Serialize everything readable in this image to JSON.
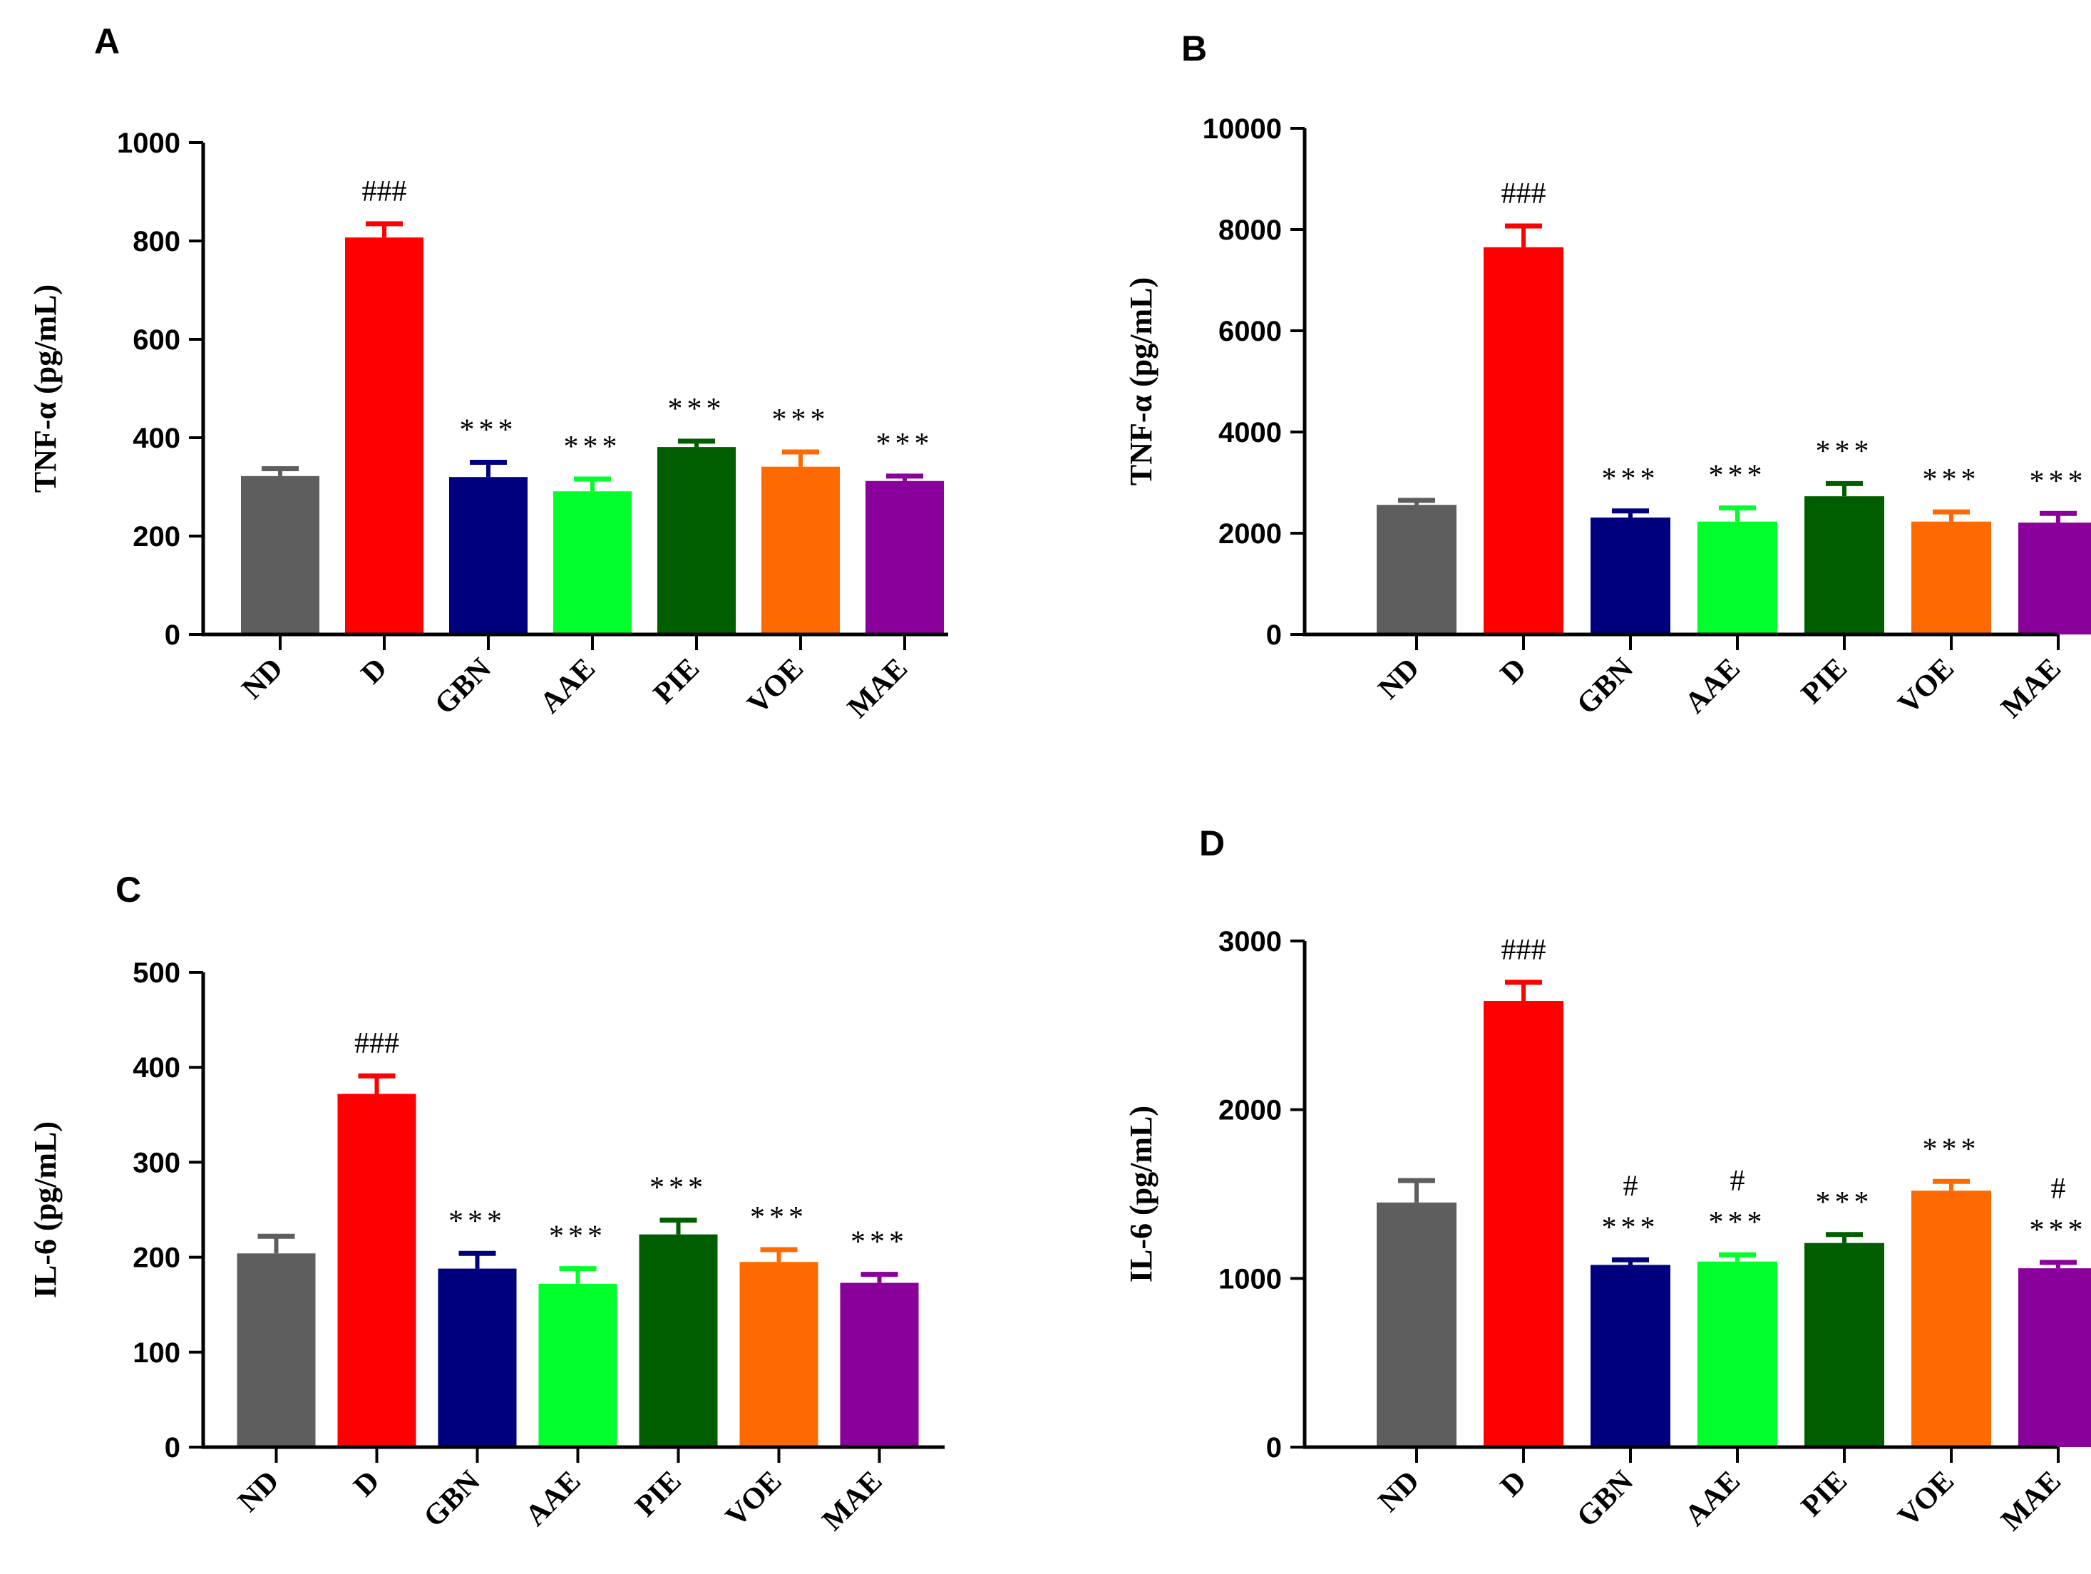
{
  "chart_data": [
    {
      "panel": "A",
      "type": "bar",
      "ylabel": "TNF-α (pg/mL)",
      "ylim": [
        0,
        1000
      ],
      "yticks": [
        "0",
        "200",
        "400",
        "600",
        "800",
        "1000"
      ],
      "categories": [
        "ND",
        "D",
        "GBN",
        "AAE",
        "PIE",
        "VOE",
        "MAE"
      ],
      "colors": [
        "#5e5e5e",
        "#ff0000",
        "#00007f",
        "#00ff2b",
        "#005e00",
        "#ff6a00",
        "#8a009a"
      ],
      "values": [
        322,
        807,
        320,
        291,
        381,
        341,
        312
      ],
      "errors": [
        15,
        28,
        30,
        25,
        12,
        30,
        10
      ],
      "annotations": [
        [],
        [
          "###"
        ],
        [
          "***"
        ],
        [
          "***"
        ],
        [
          "***"
        ],
        [
          "***"
        ],
        [
          "***"
        ]
      ]
    },
    {
      "panel": "B",
      "type": "bar",
      "ylabel": "TNF-α (pg/mL)",
      "ylim": [
        0,
        10000
      ],
      "yticks": [
        "0",
        "2000",
        "4000",
        "6000",
        "8000",
        "10000"
      ],
      "categories": [
        "ND",
        "D",
        "GBN",
        "AAE",
        "PIE",
        "VOE",
        "MAE"
      ],
      "colors": [
        "#5e5e5e",
        "#ff0000",
        "#00007f",
        "#00ff2b",
        "#005e00",
        "#ff6a00",
        "#8a009a"
      ],
      "values": [
        2560,
        7650,
        2310,
        2230,
        2730,
        2230,
        2210
      ],
      "errors": [
        90,
        420,
        130,
        270,
        250,
        190,
        180
      ],
      "annotations": [
        [],
        [
          "###"
        ],
        [
          "***"
        ],
        [
          "***"
        ],
        [
          "***"
        ],
        [
          "***"
        ],
        [
          "***"
        ]
      ]
    },
    {
      "panel": "C",
      "type": "bar",
      "ylabel": "IL-6 (pg/mL)",
      "ylim": [
        0,
        500
      ],
      "yticks": [
        "0",
        "100",
        "200",
        "300",
        "400",
        "500"
      ],
      "categories": [
        "ND",
        "D",
        "GBN",
        "AAE",
        "PIE",
        "VOE",
        "MAE"
      ],
      "colors": [
        "#5e5e5e",
        "#ff0000",
        "#00007f",
        "#00ff2b",
        "#005e00",
        "#ff6a00",
        "#8a009a"
      ],
      "values": [
        204,
        372,
        188,
        172,
        224,
        195,
        173
      ],
      "errors": [
        18,
        19,
        16,
        16,
        15,
        13,
        9
      ],
      "annotations": [
        [],
        [
          "###"
        ],
        [
          "***"
        ],
        [
          "***"
        ],
        [
          "***"
        ],
        [
          "***"
        ],
        [
          "***"
        ]
      ]
    },
    {
      "panel": "D",
      "type": "bar",
      "ylabel": "IL-6 (pg/mL)",
      "ylim": [
        0,
        3000
      ],
      "yticks": [
        "0",
        "1000",
        "2000",
        "3000"
      ],
      "categories": [
        "ND",
        "D",
        "GBN",
        "AAE",
        "PIE",
        "VOE",
        "MAE"
      ],
      "colors": [
        "#5e5e5e",
        "#ff0000",
        "#00007f",
        "#00ff2b",
        "#005e00",
        "#ff6a00",
        "#8a009a"
      ],
      "values": [
        1450,
        2645,
        1080,
        1100,
        1210,
        1520,
        1060
      ],
      "errors": [
        130,
        110,
        30,
        40,
        50,
        55,
        35
      ],
      "annotations": [
        [],
        [
          "###"
        ],
        [
          "#",
          "***"
        ],
        [
          "#",
          "***"
        ],
        [
          "***"
        ],
        [
          "***"
        ],
        [
          "#",
          "***"
        ]
      ]
    }
  ]
}
